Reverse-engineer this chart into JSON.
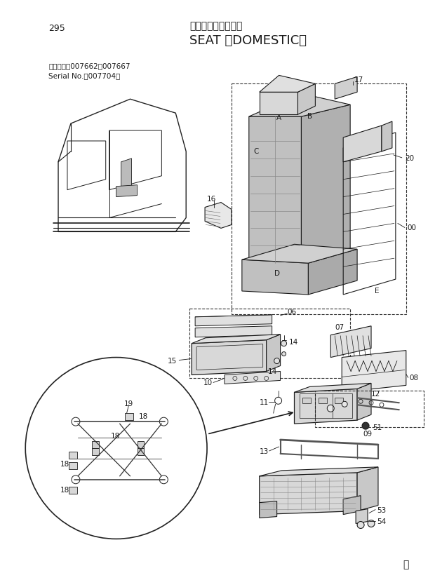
{
  "page_number": "295",
  "title_japanese": "シート〈国内仕様〉",
  "title_english": "SEAT 〈DOMESTIC〉",
  "serial_line1": "適用号機　007662～007667",
  "serial_line2": "Serial No.　007704～",
  "bg_color": "#ffffff",
  "text_color": "#1a1a1a",
  "watermark": "ⓜ"
}
